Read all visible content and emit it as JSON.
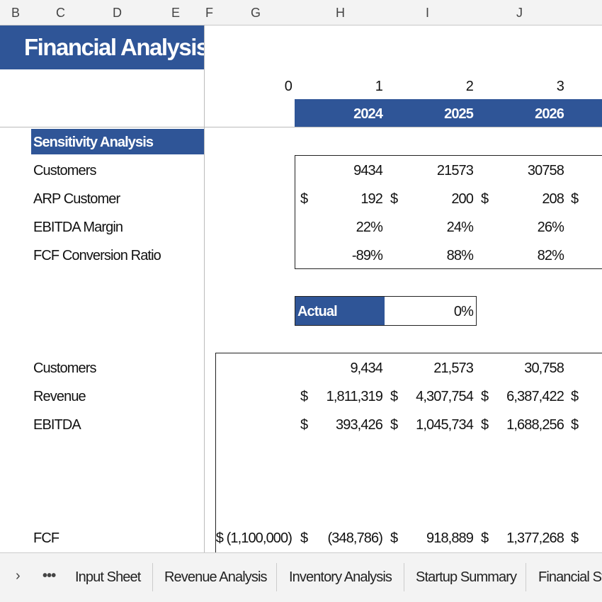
{
  "column_headers": [
    "B",
    "C",
    "D",
    "E",
    "F",
    "G",
    "H",
    "I",
    "J"
  ],
  "title": "Financial Analysis",
  "periods": [
    "0",
    "1",
    "2",
    "3"
  ],
  "years": [
    "2024",
    "2025",
    "2026"
  ],
  "sensitivity": {
    "heading": "Sensitivity Analysis",
    "currency": "$",
    "rows": [
      {
        "label": "Customers",
        "values": [
          "9434",
          "21573",
          "30758"
        ]
      },
      {
        "label": "ARP Customer",
        "values": [
          "192",
          "200",
          "208"
        ],
        "currency": true
      },
      {
        "label": "EBITDA Margin",
        "values": [
          "22%",
          "24%",
          "26%"
        ]
      },
      {
        "label": "FCF Conversion Ratio",
        "values": [
          "-89%",
          "88%",
          "82%"
        ]
      }
    ]
  },
  "actual": {
    "label": "Actual",
    "value": "0%"
  },
  "summary": {
    "currency": "$",
    "rows": [
      {
        "label": "Customers",
        "values": [
          "9,434",
          "21,573",
          "30,758"
        ]
      },
      {
        "label": "Revenue",
        "values": [
          "1,811,319",
          "4,307,754",
          "6,387,422"
        ],
        "currency": true
      },
      {
        "label": "EBITDA",
        "values": [
          "393,426",
          "1,045,734",
          "1,688,256"
        ],
        "currency": true
      },
      {
        "label": "FCF",
        "initial": "$ (1,100,000)",
        "values": [
          "(348,786)",
          "918,889",
          "1,377,268"
        ],
        "currency": true
      }
    ]
  },
  "tabs": [
    "Input Sheet",
    "Revenue Analysis",
    "Inventory Analysis",
    "Startup Summary",
    "Financial Sta"
  ]
}
